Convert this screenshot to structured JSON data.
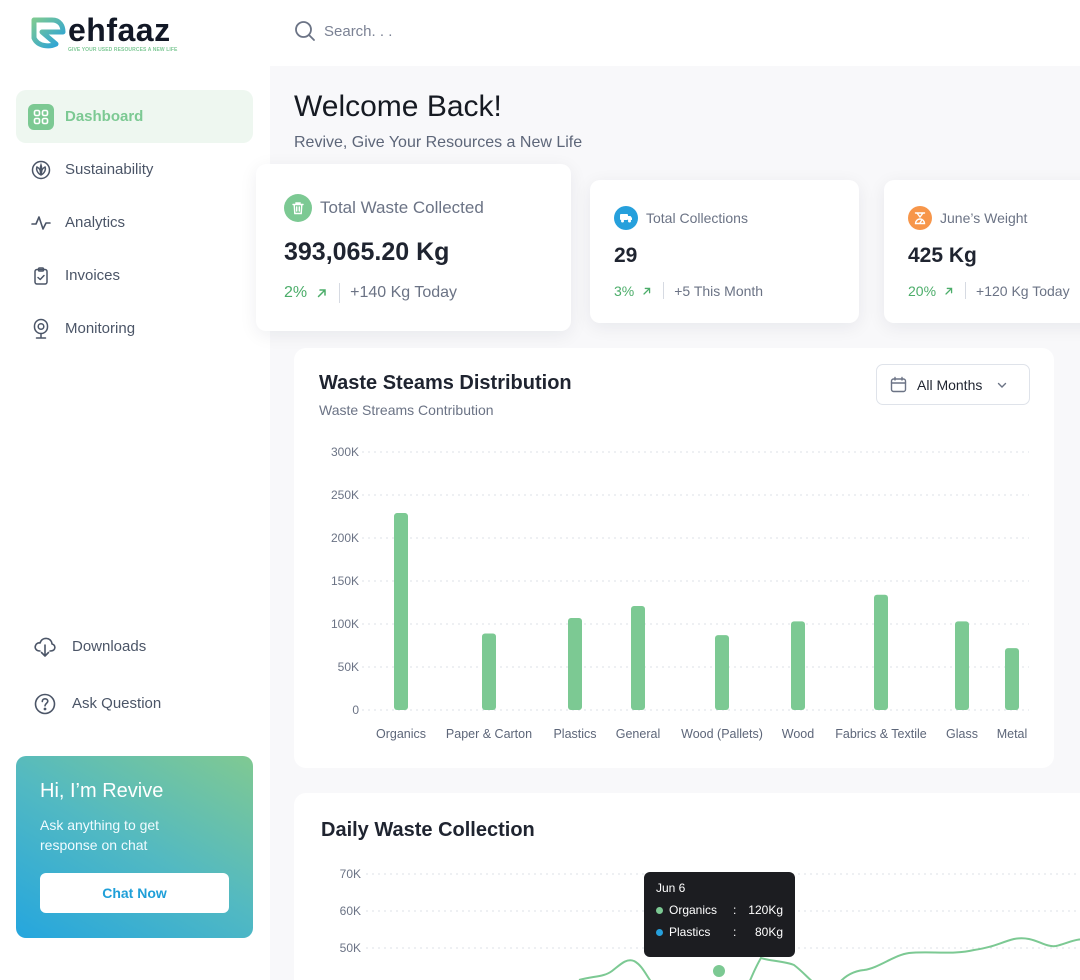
{
  "brand": {
    "name": "ehfaaz",
    "tagline": "GIVE YOUR USED RESOURCES A NEW LIFE"
  },
  "search": {
    "placeholder": "Search. . ."
  },
  "sidebar": {
    "items": [
      {
        "label": "Dashboard",
        "icon": "grid-icon",
        "active": true
      },
      {
        "label": "Sustainability",
        "icon": "leaf-icon"
      },
      {
        "label": "Analytics",
        "icon": "pulse-icon"
      },
      {
        "label": "Invoices",
        "icon": "clipboard-check-icon"
      },
      {
        "label": "Monitoring",
        "icon": "camera-icon"
      }
    ],
    "bottom_items": [
      {
        "label": "Downloads",
        "icon": "cloud-download-icon"
      },
      {
        "label": "Ask Question",
        "icon": "question-circle-icon"
      }
    ],
    "promo": {
      "title": "Hi, I’m Revive",
      "text": "Ask anything to get response on chat",
      "button": "Chat Now"
    }
  },
  "header": {
    "title": "Welcome Back!",
    "subtitle": "Revive, Give Your Resources a New Life"
  },
  "stats": [
    {
      "title": "Total Waste Collected",
      "value": "393,065.20 Kg",
      "pct": "2%",
      "note": "+140 Kg Today",
      "icon": "trash-icon",
      "color": "#7cc993"
    },
    {
      "title": "Total Collections",
      "value": "29",
      "pct": "3%",
      "note": "+5 This Month",
      "icon": "truck-icon",
      "color": "#26a0dc"
    },
    {
      "title": "June’s Weight",
      "value": "425 Kg",
      "pct": "20%",
      "note": "+120 Kg Today",
      "icon": "scale-icon",
      "color": "#f7964a"
    }
  ],
  "distribution": {
    "title": "Waste Steams Distribution",
    "subtitle": "Waste Streams Contribution",
    "filter": "All Months"
  },
  "daily": {
    "title": "Daily Waste Collection",
    "tooltip": {
      "date": "Jun 6",
      "rows": [
        {
          "name": "Organics",
          "sep": ":",
          "value": "120Kg",
          "color": "#7cc993"
        },
        {
          "name": "Plastics",
          "sep": ":",
          "value": "80Kg",
          "color": "#26a0dc"
        }
      ]
    }
  },
  "colors": {
    "accent": "#7cc993",
    "blue": "#26a0dc",
    "orange": "#f7964a",
    "positive": "#4cad6a"
  },
  "chart_data": [
    {
      "type": "bar",
      "title": "Waste Steams Distribution",
      "subtitle": "Waste Streams Contribution",
      "categories": [
        "Organics",
        "Paper & Carton",
        "Plastics",
        "General",
        "Wood (Pallets)",
        "Wood",
        "Fabrics & Textile",
        "Glass",
        "Metal"
      ],
      "values": [
        229000,
        89000,
        107000,
        121000,
        87000,
        103000,
        134000,
        103000,
        72000
      ],
      "yticks": [
        "0",
        "50K",
        "100K",
        "150K",
        "200K",
        "250K",
        "300K"
      ],
      "ylim": [
        0,
        300000
      ],
      "xlabel": "",
      "ylabel": "",
      "grid": true,
      "color": "#7cc993"
    },
    {
      "type": "line",
      "title": "Daily Waste Collection",
      "yticks": [
        "50K",
        "60K",
        "70K"
      ],
      "series": [
        {
          "name": "Organics",
          "color": "#7cc993"
        }
      ],
      "tooltip": {
        "x": "Jun 6",
        "Organics": "120Kg",
        "Plastics": "80Kg"
      },
      "grid": true
    }
  ]
}
